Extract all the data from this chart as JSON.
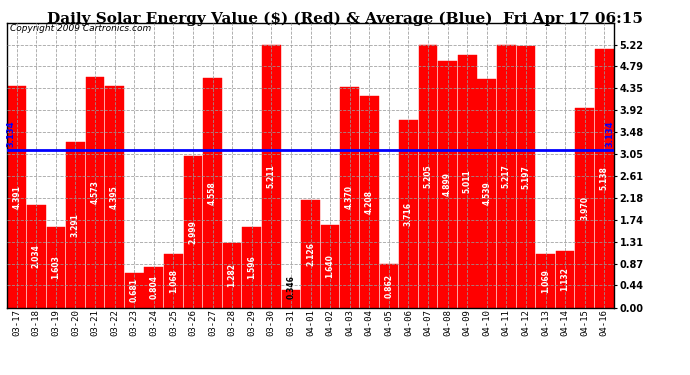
{
  "title": "Daily Solar Energy Value ($) (Red) & Average (Blue)  Fri Apr 17 06:15",
  "copyright": "Copyright 2009 Cartronics.com",
  "categories": [
    "03-17",
    "03-18",
    "03-19",
    "03-20",
    "03-21",
    "03-22",
    "03-23",
    "03-24",
    "03-25",
    "03-26",
    "03-27",
    "03-28",
    "03-29",
    "03-30",
    "03-31",
    "04-01",
    "04-02",
    "04-03",
    "04-04",
    "04-05",
    "04-06",
    "04-07",
    "04-08",
    "04-09",
    "04-10",
    "04-11",
    "04-12",
    "04-13",
    "04-14",
    "04-15",
    "04-16"
  ],
  "values": [
    4.391,
    2.034,
    1.603,
    3.291,
    4.573,
    4.395,
    0.681,
    0.804,
    1.068,
    2.999,
    4.558,
    1.282,
    1.596,
    5.211,
    0.346,
    2.126,
    1.64,
    4.37,
    4.208,
    0.862,
    3.716,
    5.205,
    4.899,
    5.011,
    4.539,
    5.217,
    5.197,
    1.069,
    1.132,
    3.97,
    5.138
  ],
  "average": 3.134,
  "bar_color": "#ff0000",
  "average_color": "#0000ff",
  "background_color": "#ffffff",
  "plot_background": "#ffffff",
  "grid_color": "#999999",
  "ylim": [
    0.0,
    5.66
  ],
  "yticks": [
    0.0,
    0.44,
    0.87,
    1.31,
    1.74,
    2.18,
    2.61,
    3.05,
    3.48,
    3.92,
    4.35,
    4.79,
    5.22
  ],
  "title_fontsize": 11,
  "copyright_fontsize": 6.5,
  "tick_fontsize": 6.5,
  "value_fontsize": 5.5,
  "avg_label": "3.134"
}
